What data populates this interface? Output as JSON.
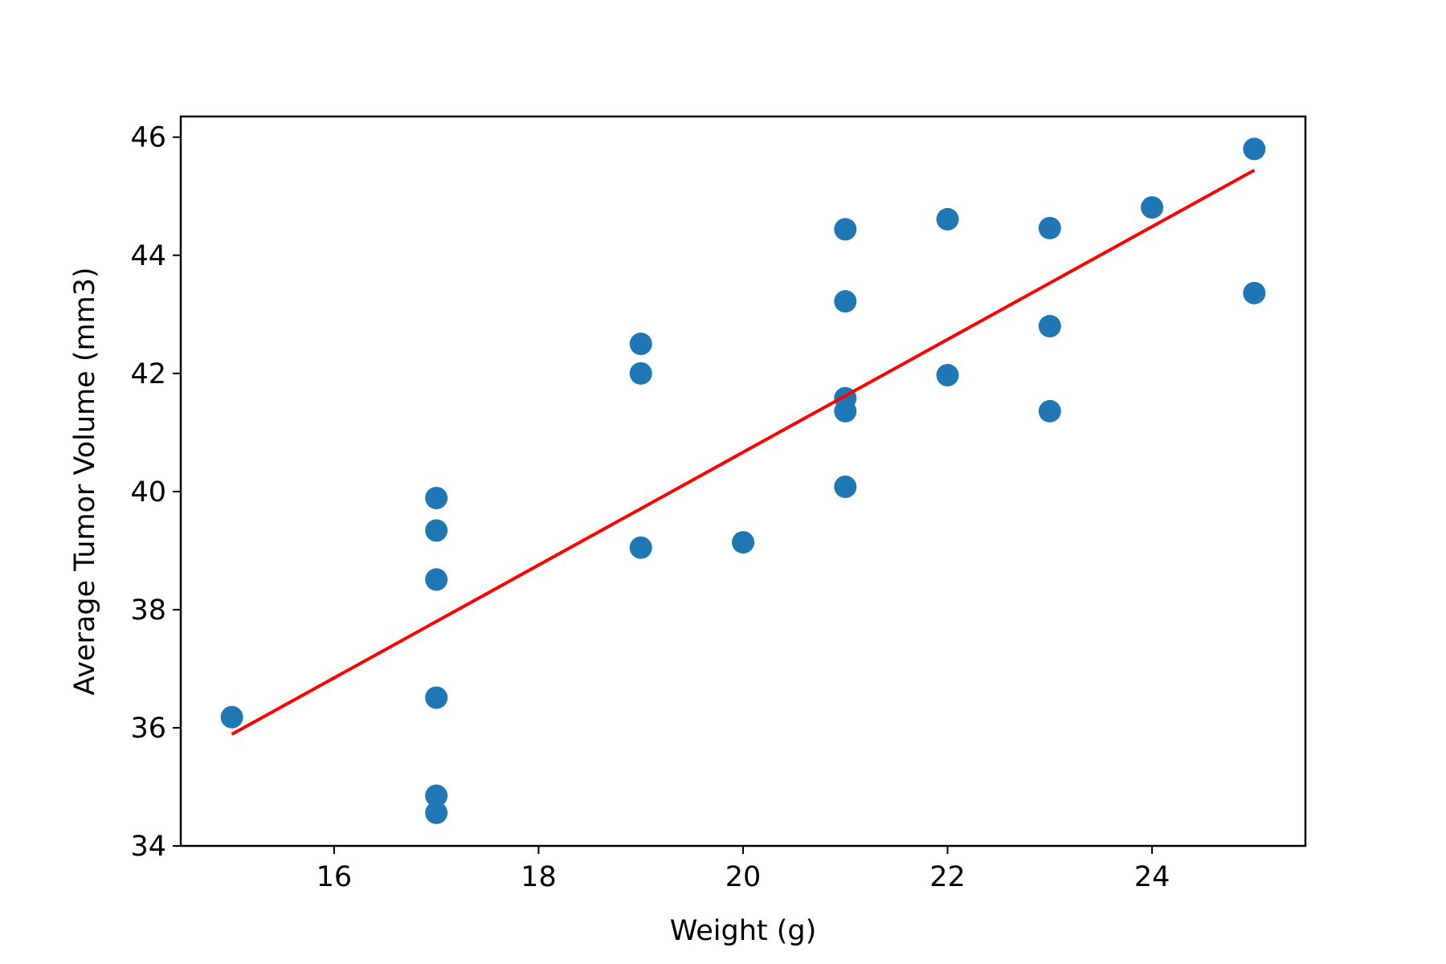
{
  "chart_data": {
    "type": "scatter",
    "title": "",
    "xlabel": "Weight (g)",
    "ylabel": "Average Tumor Volume (mm3)",
    "xlim": [
      14.5,
      25.5
    ],
    "ylim": [
      34,
      46.35
    ],
    "xticks": [
      16,
      18,
      20,
      22,
      24
    ],
    "yticks": [
      34,
      36,
      38,
      40,
      42,
      44,
      46
    ],
    "grid": false,
    "series": [
      {
        "color": "#1f77b4",
        "points": [
          [
            15,
            36.18
          ],
          [
            17,
            34.56
          ],
          [
            17,
            34.85
          ],
          [
            17,
            36.51
          ],
          [
            17,
            38.51
          ],
          [
            17,
            39.34
          ],
          [
            17,
            39.89
          ],
          [
            19,
            39.05
          ],
          [
            19,
            42.0
          ],
          [
            19,
            42.5
          ],
          [
            20,
            39.14
          ],
          [
            21,
            40.08
          ],
          [
            21,
            41.36
          ],
          [
            21,
            41.58
          ],
          [
            21,
            43.22
          ],
          [
            21,
            44.44
          ],
          [
            22,
            41.97
          ],
          [
            22,
            44.61
          ],
          [
            23,
            41.36
          ],
          [
            23,
            42.8
          ],
          [
            23,
            44.46
          ],
          [
            24,
            44.81
          ],
          [
            25,
            43.36
          ],
          [
            25,
            45.8
          ]
        ]
      }
    ],
    "regression_line": {
      "color": "#ff0000",
      "points": [
        [
          15,
          35.89
        ],
        [
          25,
          45.44
        ]
      ]
    }
  }
}
